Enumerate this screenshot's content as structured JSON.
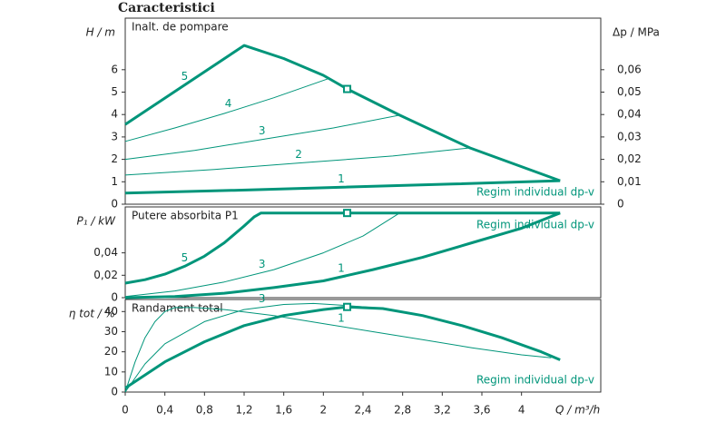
{
  "title": "Caracteristici",
  "chart_data": [
    {
      "type": "line",
      "title": "Inalt. de pompare",
      "ylabel": "H / m",
      "y2label": "Δp / MPa",
      "annotation": "Regim individual dp-v",
      "color": "#00957a",
      "xlim": [
        0,
        4.8
      ],
      "ylim": [
        0,
        8.3
      ],
      "yticks": [
        0,
        1,
        2,
        3,
        4,
        5,
        6
      ],
      "y2lim": [
        0,
        0.083
      ],
      "y2ticks": [
        0,
        {
          "value": 0.01,
          "label": "0,01"
        },
        {
          "value": 0.02,
          "label": "0,02"
        },
        {
          "value": 0.03,
          "label": "0,03"
        },
        {
          "value": 0.04,
          "label": "0,04"
        },
        {
          "value": 0.05,
          "label": "0,05"
        },
        {
          "value": 0.06,
          "label": "0,06"
        }
      ],
      "point": {
        "x": 2.24,
        "y": 5.14
      },
      "series": [
        {
          "name": "5",
          "line_width": 3,
          "x": [
            0,
            1.2,
            1.6,
            2.0,
            2.24,
            2.77,
            3.48,
            4.39
          ],
          "values": [
            3.56,
            7.08,
            6.5,
            5.75,
            5.14,
            3.97,
            2.51,
            1.05
          ]
        },
        {
          "name": "4",
          "line_width": 1,
          "x": [
            0,
            0.5,
            1.0,
            1.5,
            2.05
          ],
          "values": [
            2.8,
            3.4,
            4.05,
            4.75,
            5.6
          ]
        },
        {
          "name": "3",
          "line_width": 1,
          "x": [
            0,
            0.7,
            1.4,
            2.1,
            2.77
          ],
          "values": [
            2.0,
            2.4,
            2.9,
            3.4,
            3.97
          ]
        },
        {
          "name": "2",
          "line_width": 1,
          "x": [
            0,
            0.9,
            1.8,
            2.7,
            3.48
          ],
          "values": [
            1.3,
            1.55,
            1.85,
            2.15,
            2.51
          ]
        },
        {
          "name": "1",
          "line_width": 3,
          "x": [
            0,
            1.1,
            2.2,
            3.3,
            4.39
          ],
          "values": [
            0.5,
            0.62,
            0.76,
            0.9,
            1.05
          ]
        }
      ]
    },
    {
      "type": "line",
      "title": "Putere absorbita P1",
      "ylabel": "P₁ / kW",
      "annotation": "Regim individual dp-v",
      "color": "#00957a",
      "xlim": [
        0,
        4.8
      ],
      "ylim": [
        0,
        0.081
      ],
      "yticks": [
        0,
        {
          "value": 0.02,
          "label": "0,02"
        },
        {
          "value": 0.04,
          "label": "0,04"
        }
      ],
      "point": {
        "x": 2.24,
        "y": 0.0756
      },
      "series": [
        {
          "name": "5",
          "line_width": 3,
          "x": [
            0,
            0.2,
            0.4,
            0.6,
            0.8,
            1.0,
            1.2,
            1.3,
            1.37,
            4.39
          ],
          "values": [
            0.013,
            0.016,
            0.021,
            0.028,
            0.037,
            0.049,
            0.064,
            0.072,
            0.0756,
            0.0756
          ]
        },
        {
          "name": "3",
          "line_width": 1,
          "x": [
            0,
            0.5,
            1.0,
            1.5,
            2.0,
            2.4,
            2.77
          ],
          "values": [
            0.001,
            0.006,
            0.014,
            0.025,
            0.04,
            0.055,
            0.0756
          ]
        },
        {
          "name": "1",
          "line_width": 3,
          "x": [
            0,
            0.5,
            1.0,
            1.5,
            2.0,
            2.5,
            3.0,
            3.5,
            4.0,
            4.39
          ],
          "values": [
            0,
            0.001,
            0.004,
            0.009,
            0.015,
            0.025,
            0.036,
            0.049,
            0.062,
            0.0756
          ]
        }
      ]
    },
    {
      "type": "line",
      "title": "Randament total",
      "ylabel": "η tot / %",
      "xlabel": "Q / m³/h",
      "annotation": "Regim individual dp-v",
      "color": "#00957a",
      "xlim": [
        0,
        4.8
      ],
      "ylim": [
        0,
        46
      ],
      "yticks": [
        0,
        10,
        20,
        30,
        40
      ],
      "xticks": [
        0,
        {
          "value": 0.4,
          "label": "0,4"
        },
        {
          "value": 0.8,
          "label": "0,8"
        },
        {
          "value": 1.2,
          "label": "1,2"
        },
        {
          "value": 1.6,
          "label": "1,6"
        },
        2,
        {
          "value": 2.4,
          "label": "2,4"
        },
        {
          "value": 2.8,
          "label": "2,8"
        },
        {
          "value": 3.2,
          "label": "3,2"
        },
        {
          "value": 3.6,
          "label": "3,6"
        },
        4
      ],
      "point": {
        "x": 2.24,
        "y": 42.3
      },
      "series": [
        {
          "line_width": 3,
          "x": [
            0,
            0.4,
            0.8,
            1.2,
            1.6,
            2.0,
            2.24,
            2.6,
            3.0,
            3.4,
            3.8,
            4.2,
            4.39
          ],
          "values": [
            2,
            15,
            25,
            33,
            38,
            41,
            42.3,
            41.5,
            38,
            33,
            27,
            20,
            16
          ]
        },
        {
          "name": "3",
          "line_width": 1,
          "x": [
            0,
            0.2,
            0.4,
            0.8,
            1.2,
            1.6,
            1.9,
            2.24,
            2.5
          ],
          "values": [
            0,
            14,
            24,
            35,
            41,
            43.5,
            44,
            43,
            42
          ]
        },
        {
          "name": "1",
          "line_width": 1,
          "x": [
            0,
            0.1,
            0.2,
            0.3,
            0.4,
            0.5,
            0.7,
            1.0,
            1.5,
            2.0,
            2.5,
            3.0,
            3.5,
            4.0,
            4.3
          ],
          "values": [
            0,
            15,
            27,
            35,
            40,
            42,
            42,
            41,
            38,
            34,
            30,
            26,
            22,
            18.5,
            17
          ]
        }
      ]
    }
  ]
}
